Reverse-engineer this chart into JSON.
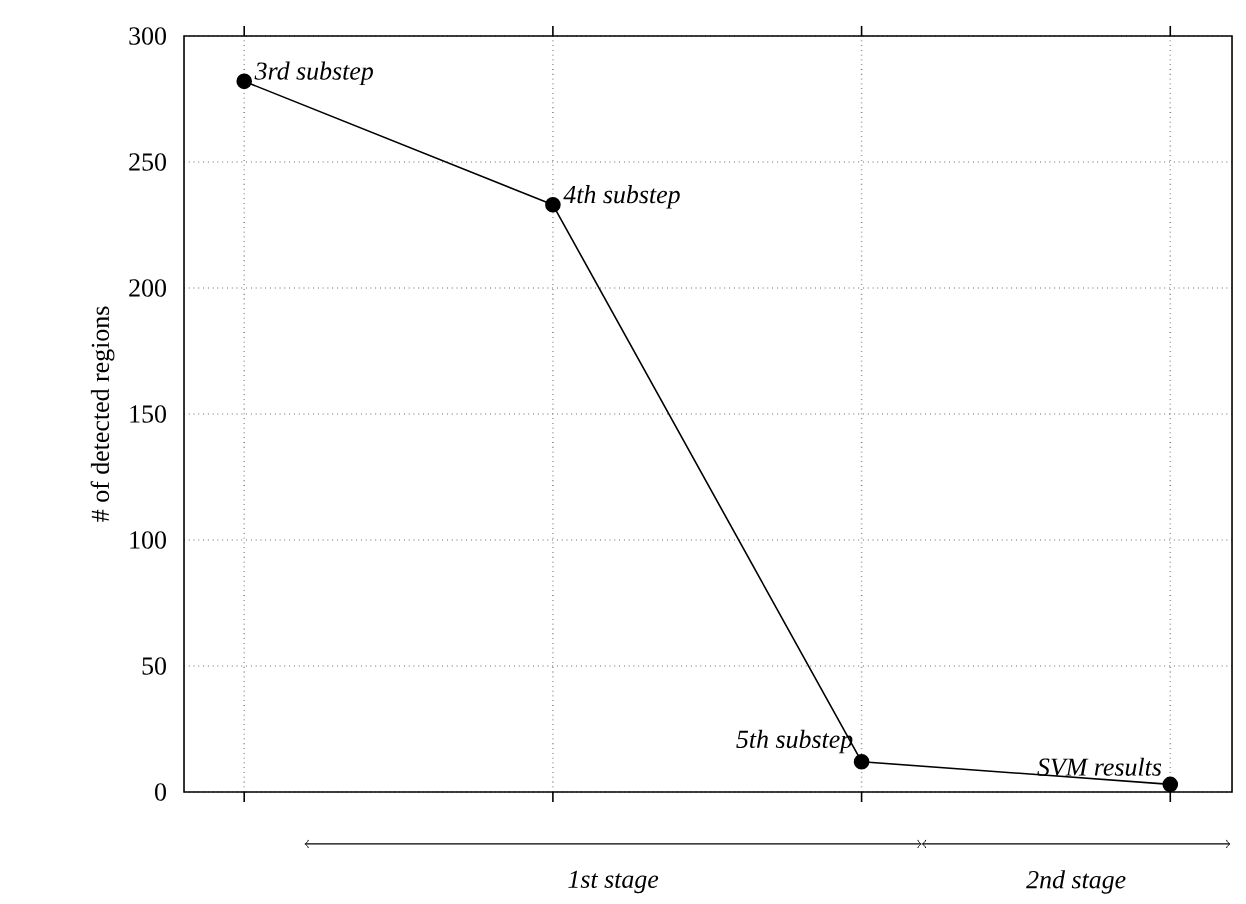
{
  "chart_data": {
    "type": "line",
    "ylabel": "# of detected regions",
    "categories": [
      null,
      null,
      null,
      null
    ],
    "series": [
      {
        "color": "#000000",
        "values": [
          282,
          233,
          12,
          3
        ]
      }
    ],
    "ylim": [
      0,
      300
    ],
    "yticks": [
      0,
      50,
      100,
      150,
      200,
      250,
      300
    ],
    "grid": true,
    "marker": "circle",
    "line_style": "solid",
    "annotations": [
      "3rd substep",
      "4th substep",
      "5th substep",
      "SVM results",
      "1st stage",
      "2nd stage"
    ]
  }
}
